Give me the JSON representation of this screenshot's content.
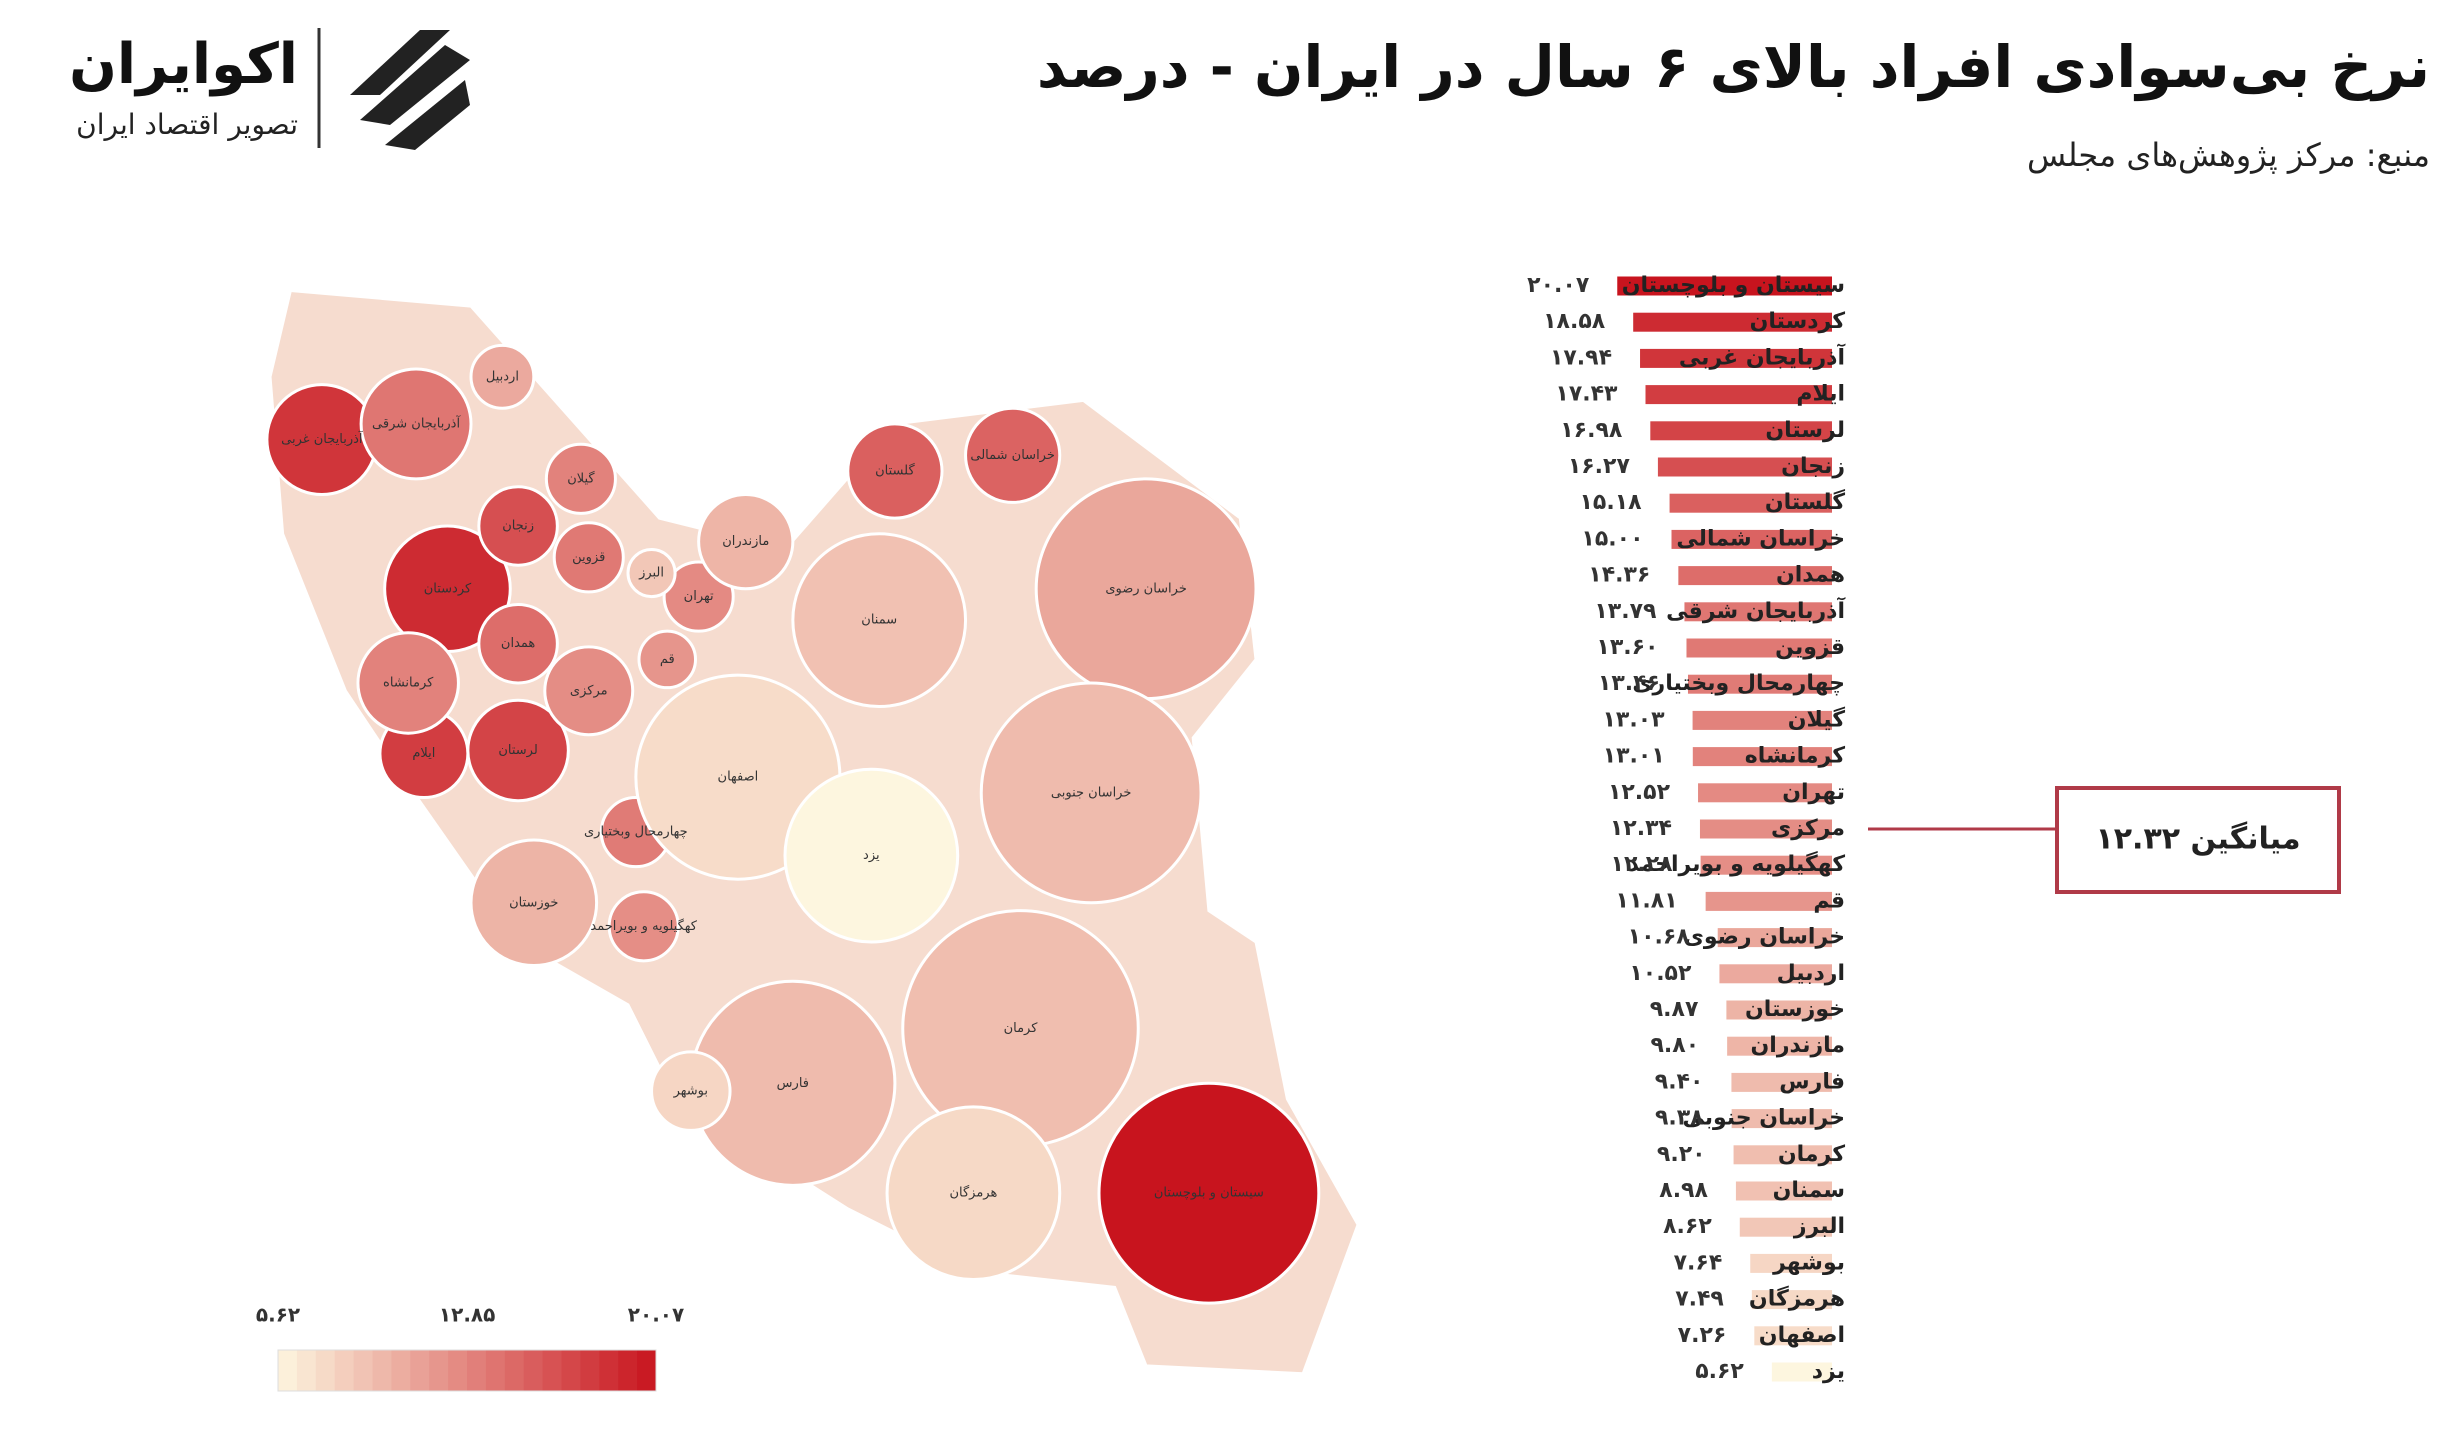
{
  "header": {
    "title": "نرخ بی‌سوادی افراد بالای ۶ سال در ایران - درصد",
    "source": "منبع: مرکز پژوهش‌های مجلس",
    "brand": "اکوایران",
    "tagline": "تصویر اقتصاد ایران"
  },
  "chart_data": {
    "type": "bar",
    "orientation": "horizontal",
    "categories": [
      "سیستان و بلوچستان",
      "کردستان",
      "آذربایجان غربی",
      "ایلام",
      "لرستان",
      "زنجان",
      "گلستان",
      "خراسان شمالی",
      "همدان",
      "آذربایجان شرقی",
      "قزوین",
      "چهارمحال وبختیاری",
      "گیلان",
      "کرمانشاه",
      "تهران",
      "مرکزی",
      "کهگیلویه و بویراحمد",
      "قم",
      "خراسان رضوی",
      "اردبیل",
      "خوزستان",
      "مازندران",
      "فارس",
      "خراسان جنوبی",
      "کرمان",
      "سمنان",
      "البرز",
      "بوشهر",
      "هرمزگان",
      "اصفهان",
      "یزد"
    ],
    "values": [
      20.07,
      18.58,
      17.94,
      17.43,
      16.98,
      16.27,
      15.18,
      15.0,
      14.36,
      13.79,
      13.6,
      13.46,
      13.03,
      13.01,
      12.52,
      12.34,
      12.28,
      11.81,
      10.68,
      10.52,
      9.87,
      9.8,
      9.4,
      9.38,
      9.2,
      8.98,
      8.62,
      7.64,
      7.49,
      7.26,
      5.62
    ],
    "value_labels": [
      "۲۰.۰۷",
      "۱۸.۵۸",
      "۱۷.۹۴",
      "۱۷.۴۳",
      "۱۶.۹۸",
      "۱۶.۲۷",
      "۱۵.۱۸",
      "۱۵.۰۰",
      "۱۴.۳۶",
      "۱۳.۷۹",
      "۱۳.۶۰",
      "۱۳.۴۶",
      "۱۳.۰۳",
      "۱۳.۰۱",
      "۱۲.۵۲",
      "۱۲.۳۴",
      "۱۲.۲۸",
      "۱۱.۸۱",
      "۱۰.۶۸",
      "۱۰.۵۲",
      "۹.۸۷",
      "۹.۸۰",
      "۹.۴۰",
      "۹.۳۸",
      "۹.۲۰",
      "۸.۹۸",
      "۸.۶۲",
      "۷.۶۴",
      "۷.۴۹",
      "۷.۲۶",
      "۵.۶۲"
    ],
    "average": {
      "value": 12.32,
      "label": "میانگین ۱۲.۳۲"
    },
    "colorbar": {
      "lim": [
        5.62,
        20.07
      ],
      "colors": [
        "#fdf6df",
        "#c8141e"
      ],
      "ticks": [
        {
          "value": 5.62,
          "label": "۵.۶۲"
        },
        {
          "value": 12.85,
          "label": "۱۲.۸۵"
        },
        {
          "value": 20.07,
          "label": "۲۰.۰۷"
        }
      ]
    }
  }
}
